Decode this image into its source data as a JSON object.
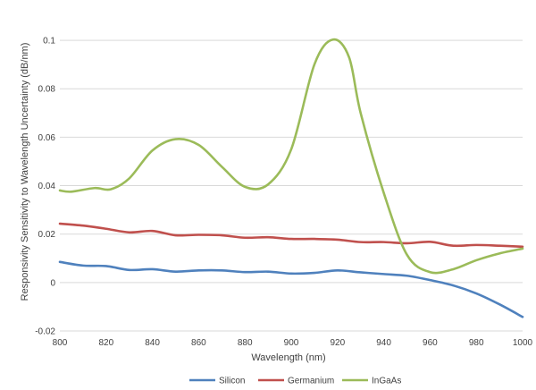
{
  "chart_data": {
    "type": "line",
    "title": "",
    "xlabel": "Wavelength (nm)",
    "ylabel": "Responsivity Sensitivity to Wavelength Uncertainty (dB/nm)",
    "xlim": [
      800,
      1000
    ],
    "ylim": [
      -0.02,
      0.11
    ],
    "x_ticks": [
      800,
      820,
      840,
      860,
      880,
      900,
      920,
      940,
      960,
      980,
      1000
    ],
    "y_ticks": [
      -0.02,
      0,
      0.02,
      0.04,
      0.06,
      0.08,
      0.1
    ],
    "y_tick_labels": [
      "-0.02",
      "0",
      "0.02",
      "0.04",
      "0.06",
      "0.08",
      "0.1"
    ],
    "grid": "horizontal",
    "legend_position": "bottom",
    "series": [
      {
        "name": "Silicon",
        "color": "#4f81bd",
        "points": [
          [
            800,
            0.0085
          ],
          [
            810,
            0.007
          ],
          [
            820,
            0.0068
          ],
          [
            830,
            0.0052
          ],
          [
            840,
            0.0055
          ],
          [
            850,
            0.0045
          ],
          [
            860,
            0.005
          ],
          [
            870,
            0.005
          ],
          [
            880,
            0.0043
          ],
          [
            890,
            0.0045
          ],
          [
            900,
            0.0037
          ],
          [
            910,
            0.004
          ],
          [
            920,
            0.005
          ],
          [
            930,
            0.0042
          ],
          [
            940,
            0.0035
          ],
          [
            950,
            0.0028
          ],
          [
            960,
            0.001
          ],
          [
            970,
            -0.0012
          ],
          [
            980,
            -0.0045
          ],
          [
            990,
            -0.009
          ],
          [
            1000,
            -0.0142
          ]
        ]
      },
      {
        "name": "Germanium",
        "color": "#c0504d",
        "points": [
          [
            800,
            0.0243
          ],
          [
            810,
            0.0235
          ],
          [
            820,
            0.0222
          ],
          [
            830,
            0.0207
          ],
          [
            840,
            0.0213
          ],
          [
            850,
            0.0195
          ],
          [
            860,
            0.0197
          ],
          [
            870,
            0.0195
          ],
          [
            880,
            0.0185
          ],
          [
            890,
            0.0187
          ],
          [
            900,
            0.018
          ],
          [
            910,
            0.018
          ],
          [
            920,
            0.0177
          ],
          [
            930,
            0.0167
          ],
          [
            940,
            0.0167
          ],
          [
            950,
            0.0162
          ],
          [
            960,
            0.0168
          ],
          [
            970,
            0.0152
          ],
          [
            980,
            0.0155
          ],
          [
            990,
            0.0152
          ],
          [
            1000,
            0.0148
          ]
        ]
      },
      {
        "name": "InGaAs",
        "color": "#9bbb59",
        "points": [
          [
            800,
            0.038
          ],
          [
            805,
            0.0375
          ],
          [
            815,
            0.039
          ],
          [
            822,
            0.0385
          ],
          [
            830,
            0.043
          ],
          [
            840,
            0.0545
          ],
          [
            850,
            0.0592
          ],
          [
            860,
            0.0568
          ],
          [
            870,
            0.0478
          ],
          [
            880,
            0.0395
          ],
          [
            890,
            0.0405
          ],
          [
            900,
            0.055
          ],
          [
            910,
            0.09
          ],
          [
            918,
            0.1003
          ],
          [
            925,
            0.093
          ],
          [
            930,
            0.07
          ],
          [
            940,
            0.037
          ],
          [
            950,
            0.0115
          ],
          [
            960,
            0.0043
          ],
          [
            970,
            0.0055
          ],
          [
            980,
            0.0092
          ],
          [
            990,
            0.012
          ],
          [
            1000,
            0.014
          ]
        ]
      }
    ]
  }
}
